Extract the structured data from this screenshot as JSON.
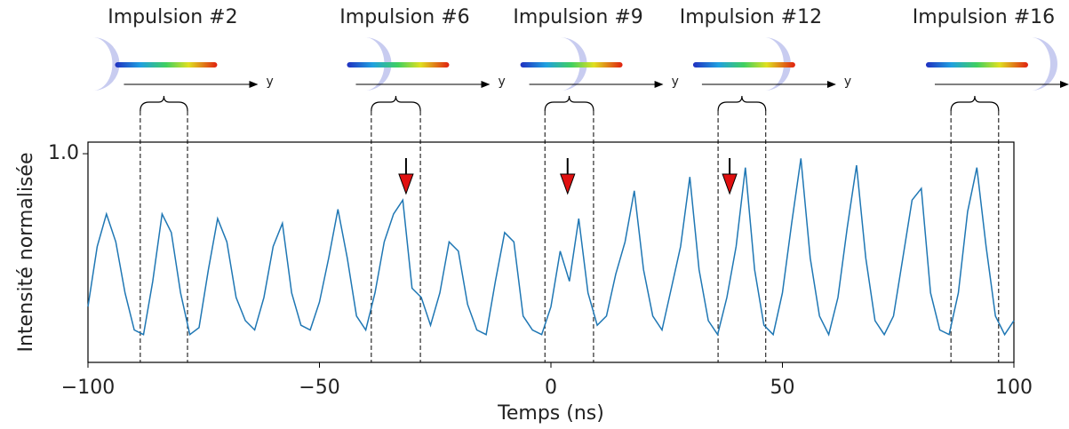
{
  "chart_data": {
    "type": "line",
    "xlabel": "Temps (ns)",
    "ylabel": "Intensité normalisée",
    "x": [
      -100,
      -98,
      -96,
      -94,
      -92,
      -90,
      -88,
      -86,
      -84,
      -82,
      -80,
      -78,
      -76,
      -74,
      -72,
      -70,
      -68,
      -66,
      -64,
      -62,
      -60,
      -58,
      -56,
      -54,
      -52,
      -50,
      -48,
      -46,
      -44,
      -42,
      -40,
      -38,
      -36,
      -34,
      -32,
      -30,
      -28,
      -26,
      -24,
      -22,
      -20,
      -18,
      -16,
      -14,
      -12,
      -10,
      -8,
      -6,
      -4,
      -2,
      0,
      2,
      4,
      6,
      8,
      10,
      12,
      14,
      16,
      18,
      20,
      22,
      24,
      26,
      28,
      30,
      32,
      34,
      36,
      38,
      40,
      42,
      44,
      46,
      48,
      50,
      52,
      54,
      56,
      58,
      60,
      62,
      64,
      66,
      68,
      70,
      72,
      74,
      76,
      78,
      80,
      82,
      84,
      86,
      88,
      90,
      92,
      94,
      96,
      98,
      100
    ],
    "series": [
      {
        "color": "#1f77b4",
        "values": [
          0.34,
          0.6,
          0.74,
          0.62,
          0.4,
          0.24,
          0.22,
          0.45,
          0.74,
          0.66,
          0.4,
          0.22,
          0.25,
          0.5,
          0.72,
          0.62,
          0.38,
          0.28,
          0.24,
          0.38,
          0.6,
          0.7,
          0.4,
          0.26,
          0.24,
          0.36,
          0.55,
          0.76,
          0.55,
          0.3,
          0.24,
          0.4,
          0.62,
          0.74,
          0.8,
          0.42,
          0.38,
          0.26,
          0.4,
          0.62,
          0.58,
          0.35,
          0.24,
          0.22,
          0.45,
          0.66,
          0.62,
          0.3,
          0.24,
          0.22,
          0.34,
          0.58,
          0.45,
          0.72,
          0.4,
          0.26,
          0.3,
          0.48,
          0.62,
          0.84,
          0.5,
          0.3,
          0.24,
          0.42,
          0.6,
          0.9,
          0.5,
          0.28,
          0.22,
          0.38,
          0.6,
          0.94,
          0.5,
          0.26,
          0.22,
          0.4,
          0.7,
          0.98,
          0.55,
          0.3,
          0.22,
          0.38,
          0.68,
          0.95,
          0.55,
          0.28,
          0.22,
          0.3,
          0.55,
          0.8,
          0.85,
          0.4,
          0.24,
          0.22,
          0.4,
          0.75,
          0.94,
          0.6,
          0.3,
          0.22,
          0.28
        ]
      }
    ],
    "xlim": [
      -100,
      100
    ],
    "xticks": [
      {
        "value": -100,
        "label": "−100"
      },
      {
        "value": -50,
        "label": "−50"
      },
      0,
      50,
      100
    ],
    "ylim": [
      0.1,
      1.05
    ],
    "yticks": [
      {
        "value": 1.0,
        "label": "1.0"
      }
    ],
    "windows": [
      {
        "label": "Impulsion #2",
        "x": [
          -88.7,
          -78.5
        ]
      },
      {
        "label": "Impulsion #6",
        "x": [
          -38.8,
          -28.2
        ]
      },
      {
        "label": "Impulsion #9",
        "x": [
          -1.3,
          9.2
        ]
      },
      {
        "label": "Impulsion #12",
        "x": [
          36.1,
          46.4
        ]
      },
      {
        "label": "Impulsion #16",
        "x": [
          86.4,
          96.7
        ]
      }
    ],
    "arrows_x": [
      -31.3,
      3.6,
      38.6
    ],
    "propagation_axis": "y"
  }
}
